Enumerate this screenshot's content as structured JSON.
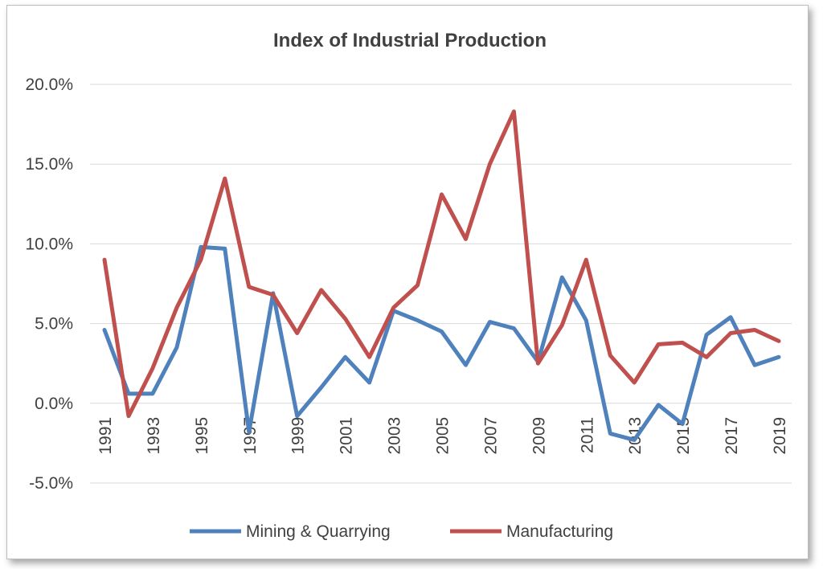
{
  "chart_data": {
    "type": "line",
    "title": "Index of Industrial Production",
    "xlabel": "",
    "ylabel": "",
    "x": [
      1991,
      1992,
      1993,
      1994,
      1995,
      1996,
      1997,
      1998,
      1999,
      2000,
      2001,
      2002,
      2003,
      2004,
      2005,
      2006,
      2007,
      2008,
      2009,
      2010,
      2011,
      2012,
      2013,
      2014,
      2015,
      2016,
      2017,
      2018,
      2019
    ],
    "x_tick_labels": [
      "1991",
      "1993",
      "1995",
      "1997",
      "1999",
      "2001",
      "2003",
      "2005",
      "2007",
      "2009",
      "2011",
      "2013",
      "2015",
      "2017",
      "2019"
    ],
    "y_tick_labels": [
      "20.0%",
      "15.0%",
      "10.0%",
      "5.0%",
      "0.0%",
      "-5.0%"
    ],
    "y_ticks": [
      20,
      15,
      10,
      5,
      0,
      -5
    ],
    "ylim": [
      -5,
      20
    ],
    "y_unit": "%",
    "grid": true,
    "legend_position": "bottom",
    "series": [
      {
        "name": "Mining & Quarrying",
        "color": "#4f81bd",
        "values": [
          4.6,
          0.6,
          0.6,
          3.5,
          9.8,
          9.7,
          -1.8,
          6.9,
          -0.8,
          1.0,
          2.9,
          1.3,
          5.8,
          5.2,
          4.5,
          2.4,
          5.1,
          4.7,
          2.6,
          7.9,
          5.2,
          -1.9,
          -2.3,
          -0.1,
          -1.3,
          4.3,
          5.4,
          2.4,
          2.9
        ]
      },
      {
        "name": "Manufacturing",
        "color": "#c0504d",
        "values": [
          9.0,
          -0.8,
          2.2,
          6.0,
          9.0,
          14.1,
          7.3,
          6.8,
          4.4,
          7.1,
          5.3,
          2.9,
          6.0,
          7.4,
          13.1,
          10.3,
          15.0,
          18.3,
          2.5,
          4.9,
          9.0,
          3.0,
          1.3,
          3.7,
          3.8,
          2.9,
          4.4,
          4.6,
          3.9
        ]
      }
    ]
  }
}
